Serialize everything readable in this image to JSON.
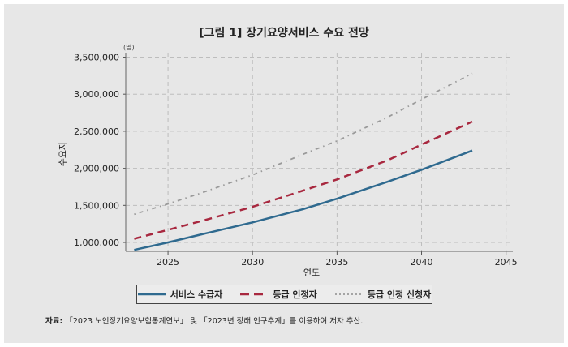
{
  "chart_data": {
    "type": "line",
    "title": "[그림 1] 장기요양서비스 수요 전망",
    "unit": "(명)",
    "xlabel": "연도",
    "ylabel": "수요자",
    "xlim": [
      2022.5,
      2045.4
    ],
    "ylim": [
      880000,
      3560000
    ],
    "xticks": [
      2025,
      2030,
      2035,
      2040,
      2045
    ],
    "yticks": [
      1000000,
      1500000,
      2000000,
      2500000,
      3000000,
      3500000
    ],
    "ytick_labels": [
      "1,000,000",
      "1,500,000",
      "2,000,000",
      "2,500,000",
      "3,000,000",
      "3,500,000"
    ],
    "grid": true,
    "legend_position": "bottom",
    "x": [
      2023,
      2025,
      2027,
      2030,
      2033,
      2035,
      2038,
      2040,
      2043
    ],
    "series": [
      {
        "name": "서비스 수급자",
        "color": "#2f6a8f",
        "style": "solid",
        "values": [
          900000,
          1000000,
          1110000,
          1270000,
          1450000,
          1590000,
          1820000,
          1980000,
          2240000
        ]
      },
      {
        "name": "등급 인정자",
        "color": "#a8283f",
        "style": "dashed",
        "values": [
          1050000,
          1170000,
          1290000,
          1480000,
          1700000,
          1850000,
          2110000,
          2320000,
          2630000
        ]
      },
      {
        "name": "등급 인정 신청자",
        "color": "#9a9a9a",
        "style": "dotted",
        "values": [
          1380000,
          1520000,
          1670000,
          1910000,
          2190000,
          2370000,
          2690000,
          2930000,
          3280000
        ]
      }
    ]
  },
  "source": {
    "label": "자료:",
    "text": "「2023 노인장기요양보험통계연보」 및 「2023년 장래 인구추계」를 이용하여 저자 추산."
  }
}
